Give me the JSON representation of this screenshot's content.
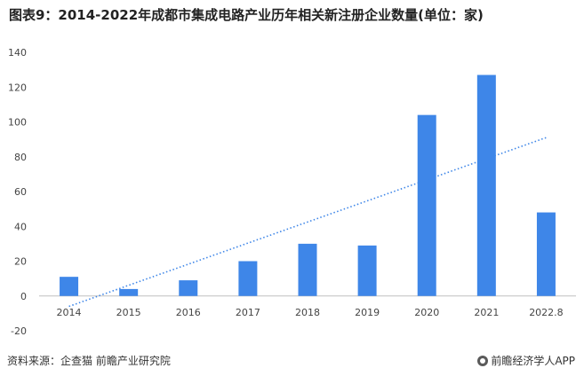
{
  "chart_data": {
    "type": "bar",
    "title": "图表9：2014-2022年成都市集成电路产业历年相关新注册企业数量(单位：家)",
    "categories": [
      "2014",
      "2015",
      "2016",
      "2017",
      "2018",
      "2019",
      "2020",
      "2021",
      "2022.8"
    ],
    "series": [
      {
        "name": "新注册企业数量",
        "values": [
          11,
          4,
          9,
          20,
          30,
          29,
          104,
          127,
          48
        ],
        "color": "#3e86e8"
      }
    ],
    "trendline": {
      "type": "linear",
      "start_value": -6,
      "end_value": 91,
      "color": "#3e86e8",
      "style": "dotted"
    },
    "ylim": [
      -20,
      140
    ],
    "yticks": [
      -20,
      0,
      20,
      40,
      60,
      80,
      100,
      120,
      140
    ],
    "xlabel": "",
    "ylabel": "",
    "grid": false,
    "legend": "none"
  },
  "footer": {
    "source": "资料来源：企查猫 前瞻产业研究院",
    "brand": "前瞻经济学人APP"
  }
}
